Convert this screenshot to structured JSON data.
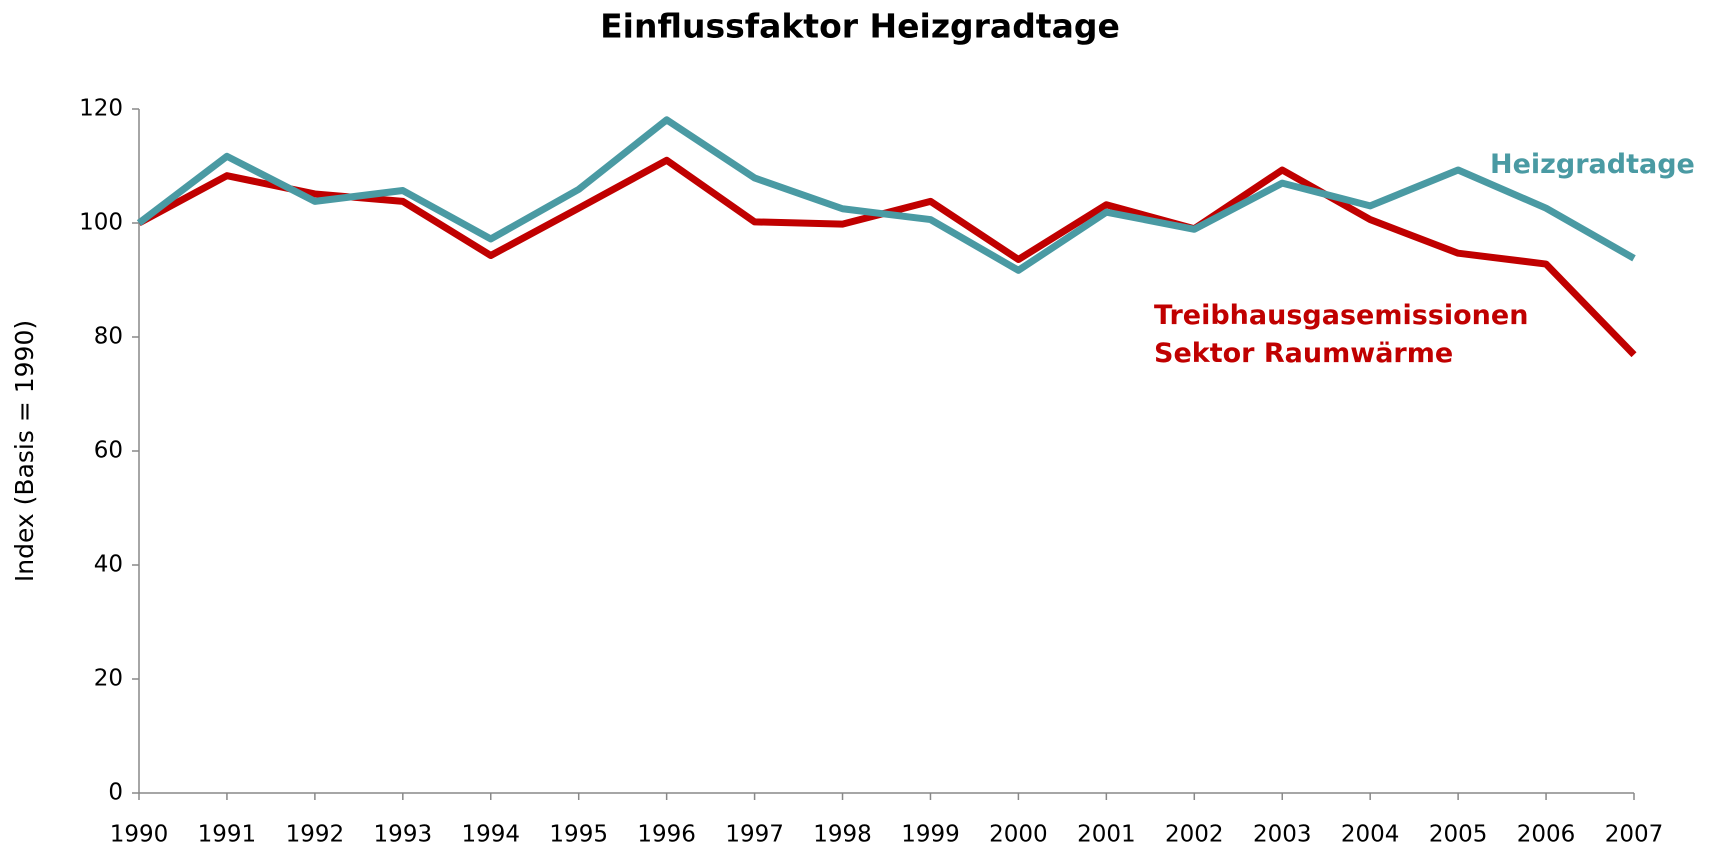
{
  "chart_data": {
    "type": "line",
    "title": "Einflussfaktor Heizgradtage",
    "y_label": "Index (Basis = 1990)",
    "categories": [
      "1990",
      "1991",
      "1992",
      "1993",
      "1994",
      "1995",
      "1996",
      "1997",
      "1998",
      "1999",
      "2000",
      "2001",
      "2002",
      "2003",
      "2004",
      "2005",
      "2006",
      "2007"
    ],
    "series": [
      {
        "name": "Heizgradtage",
        "color": "#4a9aa3",
        "values": [
          100,
          111.7,
          103.8,
          105.7,
          97.2,
          105.9,
          118.1,
          107.9,
          102.5,
          100.6,
          91.7,
          101.9,
          98.9,
          107,
          103,
          109.3,
          102.6,
          93.8
        ]
      },
      {
        "name": "Treibhausgasemissionen Sektor Raumwärme",
        "color": "#c00000",
        "values": [
          100,
          108.3,
          105.1,
          103.8,
          94.3,
          102.6,
          111,
          100.2,
          99.8,
          103.8,
          93.6,
          103.2,
          99,
          109.3,
          100.6,
          94.7,
          92.8,
          76.9
        ]
      }
    ],
    "ylim": [
      0,
      120
    ],
    "yticks": [
      0,
      20,
      40,
      60,
      80,
      100,
      120
    ],
    "grid": false
  }
}
